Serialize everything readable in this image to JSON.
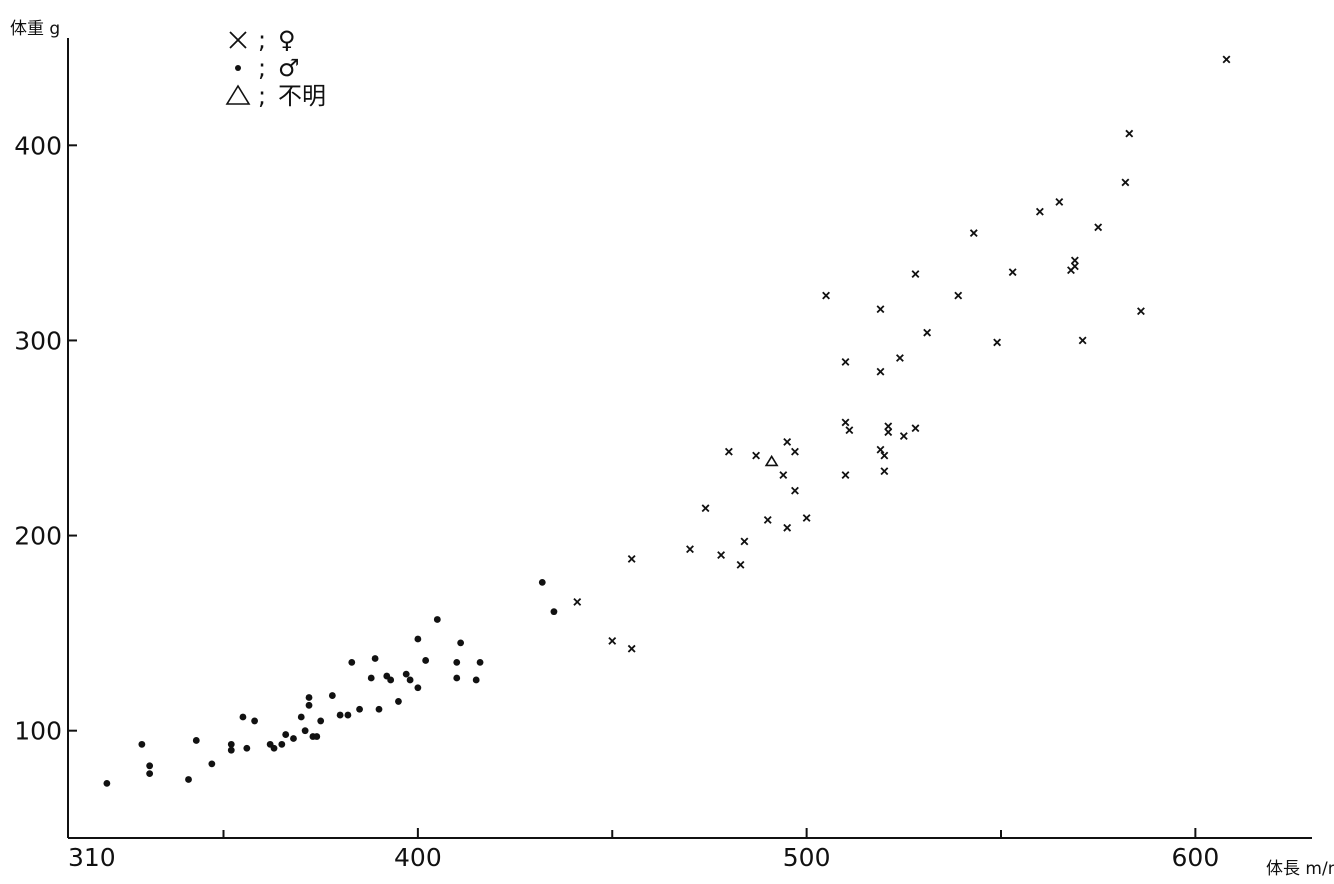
{
  "chart_data": {
    "type": "scatter",
    "xlabel": "体長 m/m",
    "ylabel": "体重 g",
    "xlim": [
      310,
      630
    ],
    "ylim": [
      45,
      455
    ],
    "x_ticks": [
      310,
      400,
      500,
      600
    ],
    "y_ticks": [
      100,
      200,
      300,
      400
    ],
    "x_minor_ticks": [
      350,
      450,
      550
    ],
    "grid": false,
    "legend_position": "top-left",
    "legend": [
      {
        "marker": "×",
        "sep": ";",
        "label": "♀"
      },
      {
        "marker": "•",
        "sep": ";",
        "label": "♂"
      },
      {
        "marker": "△",
        "sep": ";",
        "label": "不明"
      }
    ],
    "series": [
      {
        "name": "♀",
        "marker": "x",
        "points": [
          [
            441,
            166
          ],
          [
            450,
            146
          ],
          [
            455,
            142
          ],
          [
            455,
            188
          ],
          [
            470,
            193
          ],
          [
            474,
            214
          ],
          [
            478,
            190
          ],
          [
            480,
            243
          ],
          [
            483,
            185
          ],
          [
            484,
            197
          ],
          [
            487,
            241
          ],
          [
            490,
            208
          ],
          [
            494,
            231
          ],
          [
            495,
            204
          ],
          [
            495,
            248
          ],
          [
            497,
            223
          ],
          [
            497,
            243
          ],
          [
            500,
            209
          ],
          [
            505,
            323
          ],
          [
            510,
            231
          ],
          [
            510,
            258
          ],
          [
            510,
            289
          ],
          [
            511,
            254
          ],
          [
            519,
            316
          ],
          [
            519,
            284
          ],
          [
            519,
            244
          ],
          [
            520,
            241
          ],
          [
            520,
            233
          ],
          [
            521,
            253
          ],
          [
            521,
            256
          ],
          [
            524,
            291
          ],
          [
            525,
            251
          ],
          [
            528,
            255
          ],
          [
            528,
            334
          ],
          [
            531,
            304
          ],
          [
            539,
            323
          ],
          [
            543,
            355
          ],
          [
            553,
            335
          ],
          [
            549,
            299
          ],
          [
            560,
            366
          ],
          [
            565,
            371
          ],
          [
            568,
            336
          ],
          [
            569,
            338
          ],
          [
            569,
            341
          ],
          [
            571,
            300
          ],
          [
            575,
            358
          ],
          [
            582,
            381
          ],
          [
            583,
            406
          ],
          [
            586,
            315
          ],
          [
            608,
            444
          ]
        ]
      },
      {
        "name": "♂",
        "marker": "dot",
        "points": [
          [
            320,
            73
          ],
          [
            329,
            93
          ],
          [
            331,
            78
          ],
          [
            331,
            82
          ],
          [
            341,
            75
          ],
          [
            343,
            95
          ],
          [
            347,
            83
          ],
          [
            352,
            93
          ],
          [
            352,
            90
          ],
          [
            355,
            107
          ],
          [
            356,
            91
          ],
          [
            358,
            105
          ],
          [
            362,
            93
          ],
          [
            363,
            91
          ],
          [
            365,
            93
          ],
          [
            366,
            98
          ],
          [
            368,
            96
          ],
          [
            370,
            107
          ],
          [
            371,
            100
          ],
          [
            372,
            113
          ],
          [
            372,
            117
          ],
          [
            373,
            97
          ],
          [
            374,
            97
          ],
          [
            375,
            105
          ],
          [
            378,
            118
          ],
          [
            380,
            108
          ],
          [
            382,
            108
          ],
          [
            383,
            135
          ],
          [
            385,
            111
          ],
          [
            388,
            127
          ],
          [
            389,
            137
          ],
          [
            390,
            111
          ],
          [
            392,
            128
          ],
          [
            393,
            126
          ],
          [
            395,
            115
          ],
          [
            397,
            129
          ],
          [
            398,
            126
          ],
          [
            400,
            122
          ],
          [
            400,
            147
          ],
          [
            402,
            136
          ],
          [
            405,
            157
          ],
          [
            410,
            135
          ],
          [
            410,
            127
          ],
          [
            411,
            145
          ],
          [
            415,
            126
          ],
          [
            416,
            135
          ],
          [
            432,
            176
          ],
          [
            435,
            161
          ]
        ]
      },
      {
        "name": "不明",
        "marker": "triangle",
        "points": [
          [
            491,
            238
          ]
        ]
      }
    ]
  }
}
